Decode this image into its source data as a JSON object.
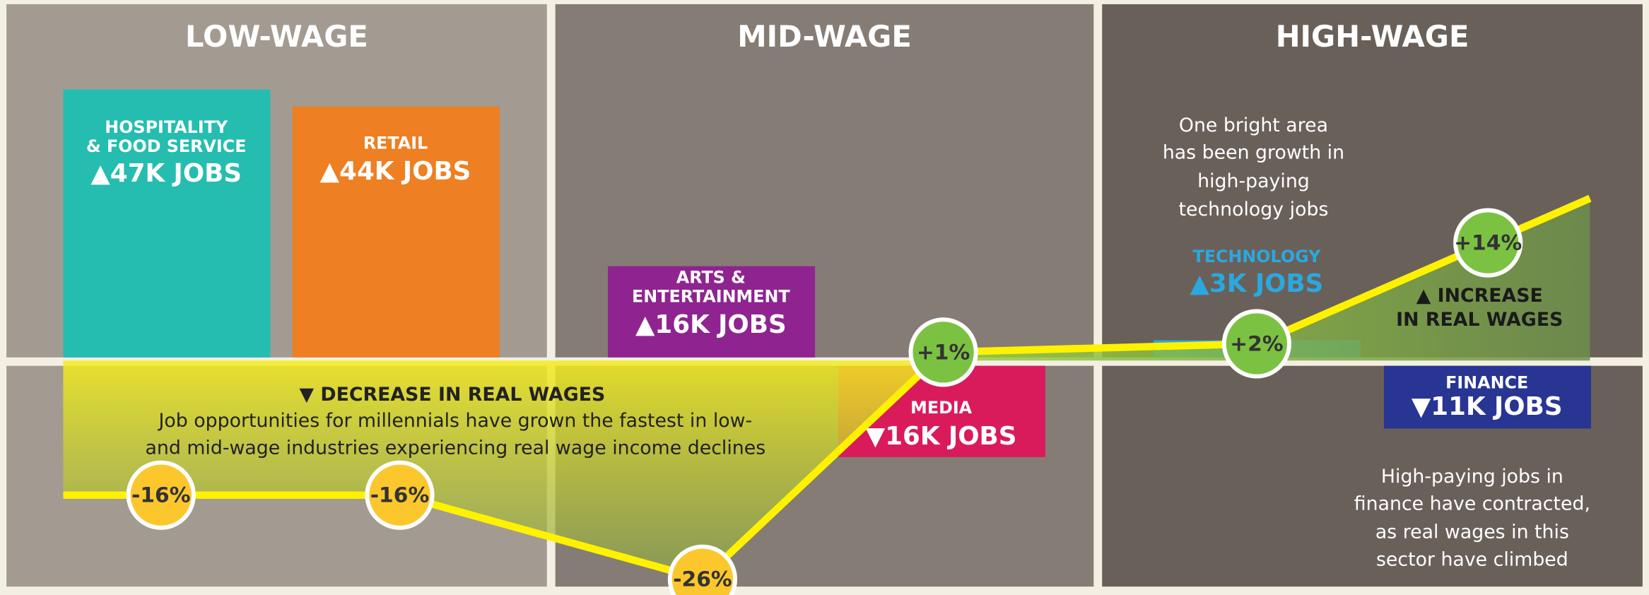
{
  "chart_data": {
    "type": "line",
    "panels": [
      "LOW-WAGE",
      "MID-WAGE",
      "HIGH-WAGE"
    ],
    "categories": [
      [
        "HOSPITALITY",
        "& FOOD SERVICE"
      ],
      [
        "RETAIL"
      ],
      [
        "ARTS &",
        "ENTERTAINMENT"
      ],
      [
        "MEDIA"
      ],
      [
        "TECHNOLOGY"
      ],
      [
        "FINANCE"
      ]
    ],
    "jobs": [
      47000,
      44000,
      16000,
      -16000,
      3000,
      -11000
    ],
    "jobs_labels": [
      "▲47K JOBS",
      "▲44K JOBS",
      "▲16K JOBS",
      "▼16K JOBS",
      "▲3K JOBS",
      "▼11K JOBS"
    ],
    "jobs_colors": [
      "#25bdb0",
      "#ee7f22",
      "#8f2490",
      "#d91b5b",
      "#29a9e0",
      "#283593"
    ],
    "values": [
      -16,
      -16,
      -26,
      1,
      2,
      14
    ],
    "value_labels": [
      "-16%",
      "-16%",
      "-26%",
      "+1%",
      "+2%",
      "+14%"
    ],
    "color": "#fff200",
    "annotations": {
      "decrease_title": "▼ DECREASE IN REAL WAGES",
      "decrease_text": [
        "Job opportunities for millennials have grown the fastest in low-",
        "and mid-wage industries experiencing real wage income declines"
      ],
      "increase_title": [
        "▲ INCREASE",
        "IN REAL WAGES"
      ],
      "technology_note": [
        "One bright area",
        "has been growth in",
        "high-paying",
        "technology jobs"
      ],
      "finance_note": [
        "High-paying jobs in",
        "finance have contracted,",
        "as real wages in this",
        "sector have climbed"
      ]
    }
  }
}
